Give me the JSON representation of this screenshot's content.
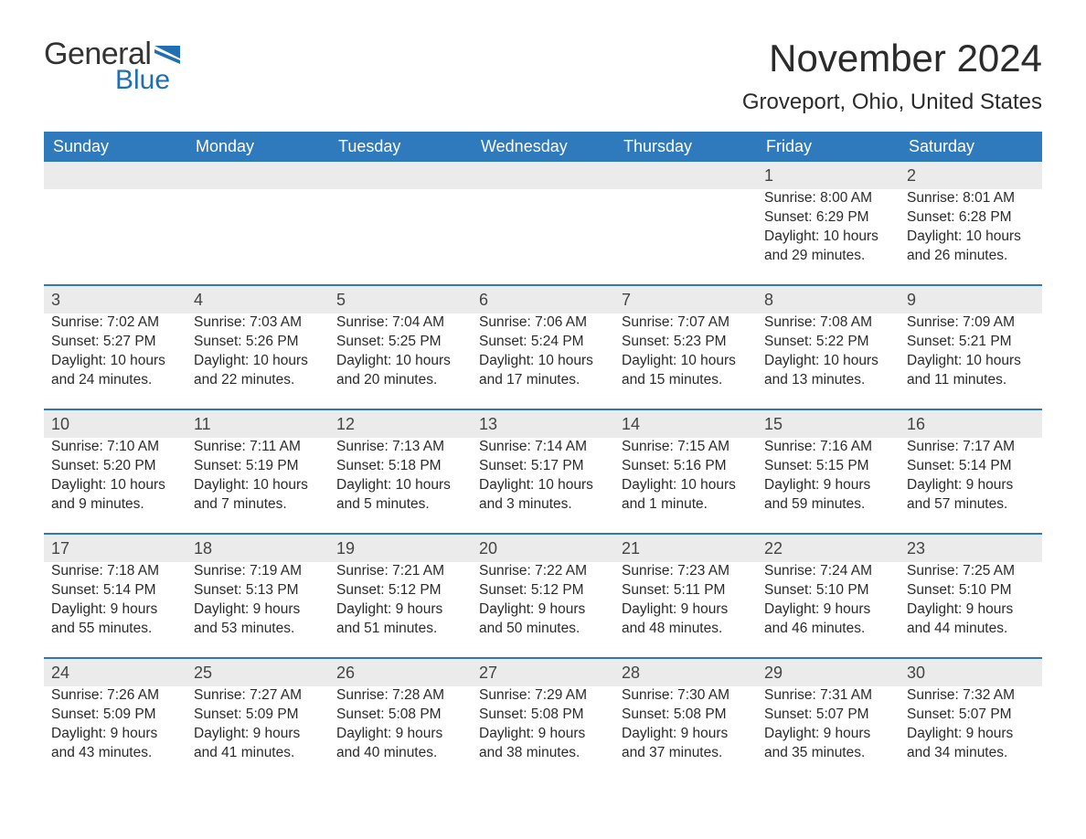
{
  "logo": {
    "text1": "General",
    "text2": "Blue",
    "accent_color": "#1f6fb2"
  },
  "title": "November 2024",
  "location": "Groveport, Ohio, United States",
  "colors": {
    "header_bg": "#2f79bd",
    "header_text": "#ffffff",
    "daynum_bg": "#ebebeb",
    "rule": "#2f79bd",
    "text": "#2b2b2b",
    "page_bg": "#ffffff"
  },
  "typography": {
    "title_fontsize": 42,
    "location_fontsize": 24,
    "header_fontsize": 18,
    "body_fontsize": 15.5,
    "font_family": "Arial"
  },
  "layout": {
    "columns": 7,
    "rows": 5,
    "start_day_index": 5
  },
  "weekdays": [
    "Sunday",
    "Monday",
    "Tuesday",
    "Wednesday",
    "Thursday",
    "Friday",
    "Saturday"
  ],
  "labels": {
    "sunrise": "Sunrise:",
    "sunset": "Sunset:",
    "daylight": "Daylight:"
  },
  "weeks": [
    [
      null,
      null,
      null,
      null,
      null,
      {
        "day": "1",
        "sunrise": "8:00 AM",
        "sunset": "6:29 PM",
        "daylight1": "10 hours",
        "daylight2": "and 29 minutes."
      },
      {
        "day": "2",
        "sunrise": "8:01 AM",
        "sunset": "6:28 PM",
        "daylight1": "10 hours",
        "daylight2": "and 26 minutes."
      }
    ],
    [
      {
        "day": "3",
        "sunrise": "7:02 AM",
        "sunset": "5:27 PM",
        "daylight1": "10 hours",
        "daylight2": "and 24 minutes."
      },
      {
        "day": "4",
        "sunrise": "7:03 AM",
        "sunset": "5:26 PM",
        "daylight1": "10 hours",
        "daylight2": "and 22 minutes."
      },
      {
        "day": "5",
        "sunrise": "7:04 AM",
        "sunset": "5:25 PM",
        "daylight1": "10 hours",
        "daylight2": "and 20 minutes."
      },
      {
        "day": "6",
        "sunrise": "7:06 AM",
        "sunset": "5:24 PM",
        "daylight1": "10 hours",
        "daylight2": "and 17 minutes."
      },
      {
        "day": "7",
        "sunrise": "7:07 AM",
        "sunset": "5:23 PM",
        "daylight1": "10 hours",
        "daylight2": "and 15 minutes."
      },
      {
        "day": "8",
        "sunrise": "7:08 AM",
        "sunset": "5:22 PM",
        "daylight1": "10 hours",
        "daylight2": "and 13 minutes."
      },
      {
        "day": "9",
        "sunrise": "7:09 AM",
        "sunset": "5:21 PM",
        "daylight1": "10 hours",
        "daylight2": "and 11 minutes."
      }
    ],
    [
      {
        "day": "10",
        "sunrise": "7:10 AM",
        "sunset": "5:20 PM",
        "daylight1": "10 hours",
        "daylight2": "and 9 minutes."
      },
      {
        "day": "11",
        "sunrise": "7:11 AM",
        "sunset": "5:19 PM",
        "daylight1": "10 hours",
        "daylight2": "and 7 minutes."
      },
      {
        "day": "12",
        "sunrise": "7:13 AM",
        "sunset": "5:18 PM",
        "daylight1": "10 hours",
        "daylight2": "and 5 minutes."
      },
      {
        "day": "13",
        "sunrise": "7:14 AM",
        "sunset": "5:17 PM",
        "daylight1": "10 hours",
        "daylight2": "and 3 minutes."
      },
      {
        "day": "14",
        "sunrise": "7:15 AM",
        "sunset": "5:16 PM",
        "daylight1": "10 hours",
        "daylight2": "and 1 minute."
      },
      {
        "day": "15",
        "sunrise": "7:16 AM",
        "sunset": "5:15 PM",
        "daylight1": "9 hours",
        "daylight2": "and 59 minutes."
      },
      {
        "day": "16",
        "sunrise": "7:17 AM",
        "sunset": "5:14 PM",
        "daylight1": "9 hours",
        "daylight2": "and 57 minutes."
      }
    ],
    [
      {
        "day": "17",
        "sunrise": "7:18 AM",
        "sunset": "5:14 PM",
        "daylight1": "9 hours",
        "daylight2": "and 55 minutes."
      },
      {
        "day": "18",
        "sunrise": "7:19 AM",
        "sunset": "5:13 PM",
        "daylight1": "9 hours",
        "daylight2": "and 53 minutes."
      },
      {
        "day": "19",
        "sunrise": "7:21 AM",
        "sunset": "5:12 PM",
        "daylight1": "9 hours",
        "daylight2": "and 51 minutes."
      },
      {
        "day": "20",
        "sunrise": "7:22 AM",
        "sunset": "5:12 PM",
        "daylight1": "9 hours",
        "daylight2": "and 50 minutes."
      },
      {
        "day": "21",
        "sunrise": "7:23 AM",
        "sunset": "5:11 PM",
        "daylight1": "9 hours",
        "daylight2": "and 48 minutes."
      },
      {
        "day": "22",
        "sunrise": "7:24 AM",
        "sunset": "5:10 PM",
        "daylight1": "9 hours",
        "daylight2": "and 46 minutes."
      },
      {
        "day": "23",
        "sunrise": "7:25 AM",
        "sunset": "5:10 PM",
        "daylight1": "9 hours",
        "daylight2": "and 44 minutes."
      }
    ],
    [
      {
        "day": "24",
        "sunrise": "7:26 AM",
        "sunset": "5:09 PM",
        "daylight1": "9 hours",
        "daylight2": "and 43 minutes."
      },
      {
        "day": "25",
        "sunrise": "7:27 AM",
        "sunset": "5:09 PM",
        "daylight1": "9 hours",
        "daylight2": "and 41 minutes."
      },
      {
        "day": "26",
        "sunrise": "7:28 AM",
        "sunset": "5:08 PM",
        "daylight1": "9 hours",
        "daylight2": "and 40 minutes."
      },
      {
        "day": "27",
        "sunrise": "7:29 AM",
        "sunset": "5:08 PM",
        "daylight1": "9 hours",
        "daylight2": "and 38 minutes."
      },
      {
        "day": "28",
        "sunrise": "7:30 AM",
        "sunset": "5:08 PM",
        "daylight1": "9 hours",
        "daylight2": "and 37 minutes."
      },
      {
        "day": "29",
        "sunrise": "7:31 AM",
        "sunset": "5:07 PM",
        "daylight1": "9 hours",
        "daylight2": "and 35 minutes."
      },
      {
        "day": "30",
        "sunrise": "7:32 AM",
        "sunset": "5:07 PM",
        "daylight1": "9 hours",
        "daylight2": "and 34 minutes."
      }
    ]
  ]
}
